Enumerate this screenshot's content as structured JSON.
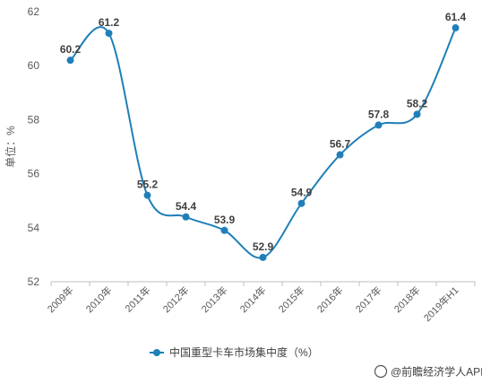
{
  "chart_data": {
    "type": "line",
    "categories": [
      "2009年",
      "2010年",
      "2011年",
      "2012年",
      "2013年",
      "2014年",
      "2015年",
      "2016年",
      "2017年",
      "2018年",
      "2019年H1"
    ],
    "series": [
      {
        "name": "中国重型卡车市场集中度（%）",
        "values": [
          60.2,
          61.2,
          55.2,
          54.4,
          53.9,
          52.9,
          54.9,
          56.7,
          57.8,
          58.2,
          61.4
        ],
        "labels": [
          "60.2",
          "61.2",
          "55.2",
          "54.4",
          "53.9",
          "52.9",
          "54.9",
          "56.7",
          "57.8",
          "58.2",
          "61.4"
        ],
        "color": "#1f7fb8"
      }
    ],
    "title": "",
    "xlabel": "",
    "ylabel": "单位：%",
    "ylim": [
      52,
      62
    ],
    "yticks": [
      52,
      54,
      56,
      58,
      60,
      62
    ],
    "ytick_labels": [
      "52",
      "54",
      "56",
      "58",
      "60",
      "62"
    ],
    "grid": false,
    "smooth": true,
    "legend_position": "bottom"
  },
  "credit": "@前瞻经济学人APP"
}
